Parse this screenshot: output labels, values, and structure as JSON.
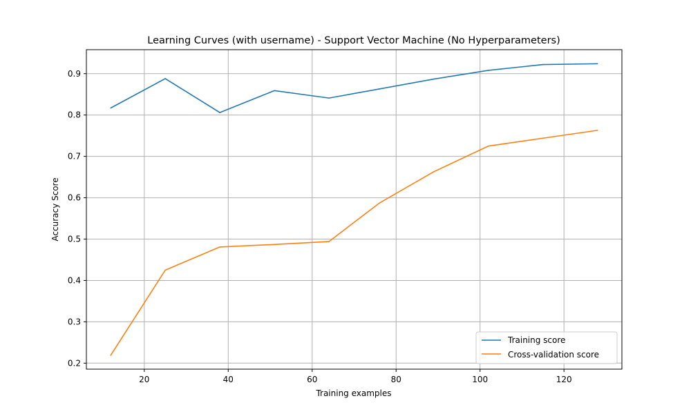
{
  "chart_data": {
    "type": "line",
    "title": "Learning Curves (with username) - Support Vector Machine (No Hyperparameters)",
    "xlabel": "Training examples",
    "ylabel": "Accuracy Score",
    "xlim": [
      6.2,
      133.8
    ],
    "ylim": [
      0.1855,
      0.958
    ],
    "xticks": [
      20,
      40,
      60,
      80,
      100,
      120
    ],
    "yticks": [
      0.2,
      0.3,
      0.4,
      0.5,
      0.6,
      0.7,
      0.8,
      0.9
    ],
    "grid": true,
    "legend_position": "lower-right",
    "x": [
      12,
      25,
      38,
      51,
      64,
      76,
      89,
      102,
      115,
      128
    ],
    "series": [
      {
        "name": "Training score",
        "color": "#1f77b4",
        "values": [
          0.817,
          0.888,
          0.806,
          0.859,
          0.841,
          0.863,
          0.887,
          0.908,
          0.922,
          0.924
        ]
      },
      {
        "name": "Cross-validation score",
        "color": "#ff7f0e",
        "values": [
          0.219,
          0.425,
          0.481,
          0.487,
          0.494,
          0.587,
          0.663,
          0.725,
          0.744,
          0.763
        ]
      }
    ]
  }
}
